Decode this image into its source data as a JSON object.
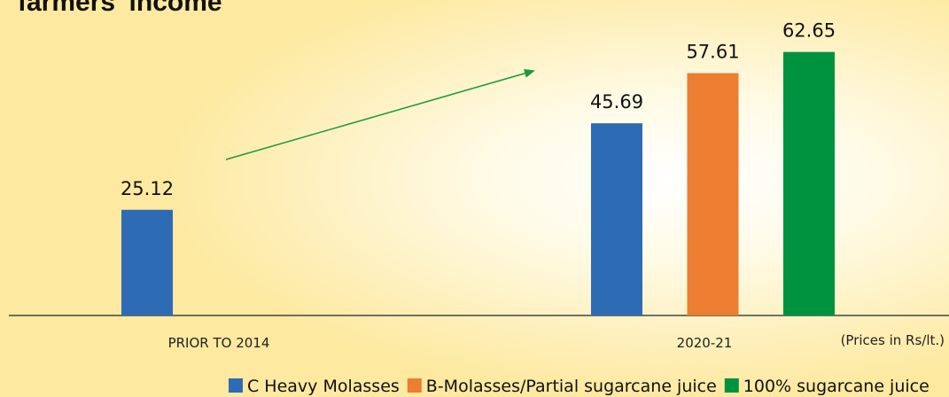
{
  "chart_data": {
    "type": "bar",
    "title": "farmers' income",
    "categories": [
      "PRIOR TO 2014",
      "2020-21"
    ],
    "series": [
      {
        "name": "C Heavy Molasses",
        "color": "#2e6bb5",
        "values": [
          25.12,
          45.69
        ]
      },
      {
        "name": "B-Molasses/Partial sugarcane juice",
        "color": "#ed7d31",
        "values": [
          null,
          57.61
        ]
      },
      {
        "name": "100% sugarcane juice",
        "color": "#00933f",
        "values": [
          null,
          62.65
        ]
      }
    ],
    "ylim": [
      0,
      75
    ],
    "annotation": "(Prices in Rs/lt.)"
  }
}
